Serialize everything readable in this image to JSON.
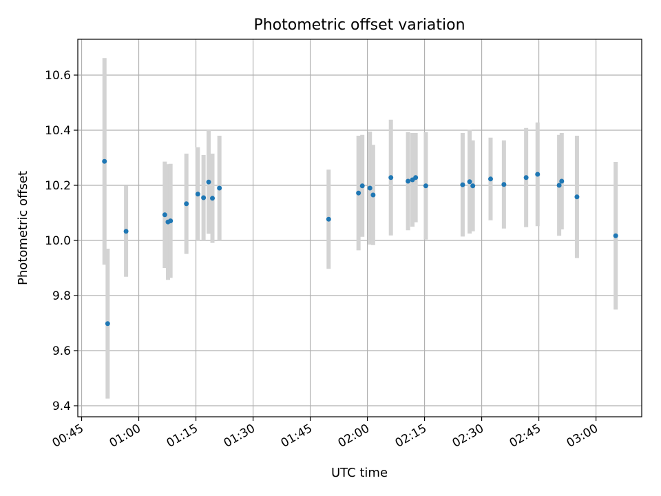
{
  "chart_data": {
    "type": "scatter",
    "title": "Photometric offset variation",
    "xlabel": "UTC time",
    "ylabel": "Photometric offset",
    "grid": true,
    "legend": "none",
    "x_axis_kind": "time",
    "xlim": [
      "00:44",
      "03:12"
    ],
    "ylim": [
      9.36,
      10.73
    ],
    "x_ticks": [
      "00:45",
      "01:00",
      "01:15",
      "01:30",
      "01:45",
      "02:00",
      "02:15",
      "02:30",
      "02:45",
      "03:00"
    ],
    "y_ticks": [
      "9.4",
      "9.6",
      "9.8",
      "10.0",
      "10.2",
      "10.4",
      "10.6"
    ],
    "x_tick_rotation_deg": 30,
    "colors": {
      "point": "#1f77b4",
      "errorbar": "#d3d3d3",
      "grid": "#b0b0b0",
      "axes": "#000000"
    },
    "points": [
      {
        "t": "00:51:00",
        "y": 10.287,
        "err": 0.375
      },
      {
        "t": "00:51:50",
        "y": 9.698,
        "err": 0.272
      },
      {
        "t": "00:56:40",
        "y": 10.033,
        "err": 0.165
      },
      {
        "t": "01:06:50",
        "y": 10.093,
        "err": 0.193
      },
      {
        "t": "01:07:40",
        "y": 10.067,
        "err": 0.21
      },
      {
        "t": "01:08:20",
        "y": 10.071,
        "err": 0.207
      },
      {
        "t": "01:12:30",
        "y": 10.133,
        "err": 0.182
      },
      {
        "t": "01:15:30",
        "y": 10.168,
        "err": 0.17
      },
      {
        "t": "01:17:00",
        "y": 10.155,
        "err": 0.155
      },
      {
        "t": "01:18:20",
        "y": 10.212,
        "err": 0.188
      },
      {
        "t": "01:19:20",
        "y": 10.153,
        "err": 0.162
      },
      {
        "t": "01:21:10",
        "y": 10.19,
        "err": 0.19
      },
      {
        "t": "01:49:50",
        "y": 10.077,
        "err": 0.18
      },
      {
        "t": "01:57:40",
        "y": 10.172,
        "err": 0.208
      },
      {
        "t": "01:58:40",
        "y": 10.198,
        "err": 0.185
      },
      {
        "t": "02:00:40",
        "y": 10.19,
        "err": 0.205
      },
      {
        "t": "02:01:30",
        "y": 10.165,
        "err": 0.182
      },
      {
        "t": "02:06:10",
        "y": 10.228,
        "err": 0.21
      },
      {
        "t": "02:10:40",
        "y": 10.215,
        "err": 0.178
      },
      {
        "t": "02:11:50",
        "y": 10.22,
        "err": 0.17
      },
      {
        "t": "02:12:40",
        "y": 10.228,
        "err": 0.162
      },
      {
        "t": "02:15:20",
        "y": 10.198,
        "err": 0.195
      },
      {
        "t": "02:25:00",
        "y": 10.202,
        "err": 0.188
      },
      {
        "t": "02:26:50",
        "y": 10.213,
        "err": 0.188
      },
      {
        "t": "02:27:40",
        "y": 10.198,
        "err": 0.165
      },
      {
        "t": "02:32:20",
        "y": 10.223,
        "err": 0.15
      },
      {
        "t": "02:35:50",
        "y": 10.203,
        "err": 0.16
      },
      {
        "t": "02:41:40",
        "y": 10.228,
        "err": 0.18
      },
      {
        "t": "02:44:40",
        "y": 10.24,
        "err": 0.188
      },
      {
        "t": "02:50:20",
        "y": 10.2,
        "err": 0.183
      },
      {
        "t": "02:51:00",
        "y": 10.215,
        "err": 0.175
      },
      {
        "t": "02:55:00",
        "y": 10.158,
        "err": 0.222
      },
      {
        "t": "03:05:10",
        "y": 10.017,
        "err": 0.268
      }
    ]
  }
}
